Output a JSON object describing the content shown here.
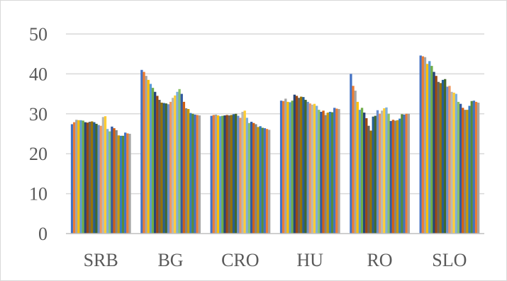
{
  "chart_data": {
    "type": "bar",
    "title": "",
    "xlabel": "",
    "ylabel": "",
    "ylim": [
      0,
      50
    ],
    "yticks": [
      0,
      10,
      20,
      30,
      40,
      50
    ],
    "grid": true,
    "legend": "none",
    "categories": [
      "SRB",
      "BG",
      "CRO",
      "HU",
      "RO",
      "SLO"
    ],
    "palette": [
      "#4472c4",
      "#ed7d31",
      "#a5a5a5",
      "#ffc000",
      "#5b9bd5",
      "#70ad47",
      "#264478",
      "#9e480e",
      "#636363",
      "#997300",
      "#255e91",
      "#43682b",
      "#698ed0",
      "#f1975a",
      "#b7b7b7",
      "#ffcd33",
      "#7cafdd",
      "#8cc168",
      "#335aa1",
      "#d26012",
      "#848484",
      "#cc9a00",
      "#327dc2",
      "#5a8a39"
    ],
    "values_per_category": [
      [
        27.4,
        27.9,
        28.5,
        28.4,
        28.4,
        28.3,
        27.9,
        27.8,
        28.0,
        28.1,
        27.9,
        27.5,
        27.2,
        27.0,
        29.2,
        29.4,
        26.2,
        25.6,
        26.8,
        26.4,
        25.9,
        24.6,
        24.5,
        24.5,
        25.3,
        25.1,
        25.0
      ],
      [
        41.0,
        40.5,
        39.5,
        38.5,
        37.5,
        36.5,
        35.5,
        34.5,
        33.5,
        32.8,
        32.7,
        32.6,
        32.4,
        33.0,
        34.0,
        34.6,
        35.5,
        36.2,
        35.0,
        33.0,
        31.4,
        31.2,
        30.2,
        30.0,
        29.8,
        29.7,
        29.6
      ],
      [
        29.5,
        29.7,
        29.8,
        29.6,
        29.4,
        29.5,
        29.6,
        29.7,
        29.6,
        29.7,
        29.9,
        30.0,
        29.5,
        29.0,
        30.5,
        30.8,
        29.0,
        27.7,
        28.0,
        27.7,
        27.4,
        26.7,
        26.9,
        26.5,
        26.4,
        26.2,
        26.0
      ],
      [
        33.3,
        33.2,
        33.8,
        33.0,
        32.9,
        33.3,
        34.8,
        34.5,
        34.0,
        34.3,
        34.2,
        33.5,
        33.0,
        32.6,
        32.3,
        32.5,
        32.0,
        31.0,
        30.5,
        30.8,
        29.7,
        30.3,
        30.5,
        30.4,
        31.5,
        31.3,
        31.2
      ],
      [
        40.0,
        37.0,
        35.8,
        33.0,
        31.0,
        31.5,
        30.3,
        28.9,
        27.0,
        25.8,
        29.3,
        29.5,
        30.9,
        30.0,
        30.8,
        31.4,
        31.6,
        30.0,
        28.2,
        28.5,
        28.3,
        28.4,
        28.8,
        29.9,
        29.8,
        30.0,
        30.0
      ],
      [
        44.6,
        44.4,
        44.2,
        42.5,
        43.2,
        42.0,
        40.5,
        39.5,
        38.0,
        37.7,
        38.5,
        38.7,
        36.8,
        37.0,
        35.5,
        35.3,
        35.0,
        33.0,
        32.5,
        31.5,
        31.0,
        31.0,
        32.0,
        33.2,
        33.3,
        33.0,
        32.8
      ]
    ]
  }
}
